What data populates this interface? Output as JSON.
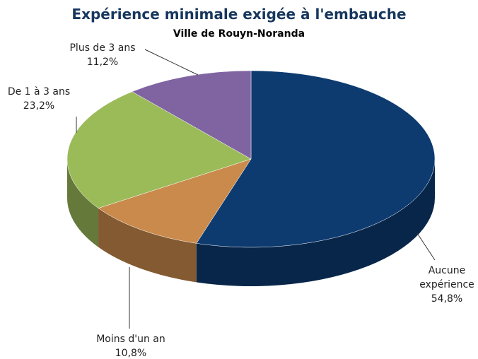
{
  "chart_data": {
    "type": "pie",
    "title": "Expérience minimale exigée à l'embauche",
    "subtitle": "Ville de Rouyn-Noranda",
    "categories": [
      "Aucune expérience",
      "Moins d'un an",
      "De 1 à 3 ans",
      "Plus de 3 ans"
    ],
    "values": [
      54.8,
      10.8,
      23.2,
      11.2
    ],
    "value_labels": [
      "54,8%",
      "10,8%",
      "23,2%",
      "11,2%"
    ],
    "colors": [
      "#0d3b70",
      "#c98a4b",
      "#9bbb59",
      "#8064a2"
    ]
  }
}
